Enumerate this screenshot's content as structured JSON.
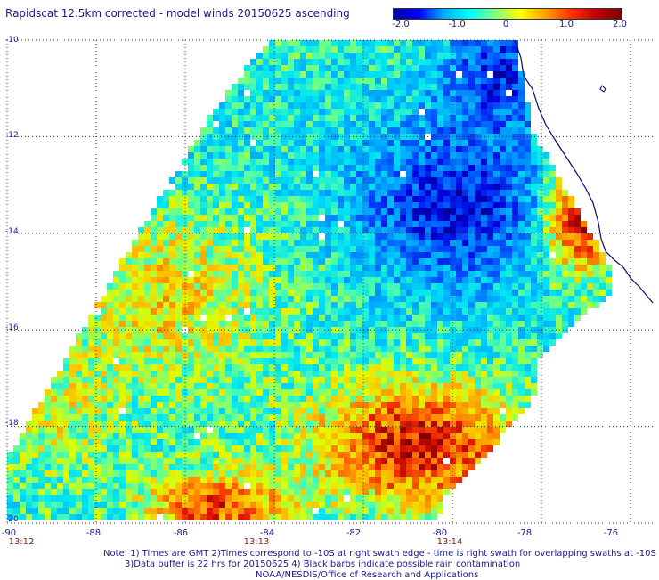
{
  "title": "Rapidscat 12.5km corrected - model winds 20150625 ascending",
  "colorbar": {
    "ticks": [
      "-2.0",
      "-1.0",
      "0",
      "1.0",
      "2.0"
    ],
    "colors": [
      "#0000a0",
      "#0000ff",
      "#00b0ff",
      "#00ffff",
      "#7fff7f",
      "#ffff00",
      "#ffa000",
      "#ff3000",
      "#c00000",
      "#800000"
    ]
  },
  "axes": {
    "lat_labels": [
      "-10",
      "-12",
      "-14",
      "-16",
      "-18",
      "-20"
    ],
    "lon_labels": [
      "-90",
      "-88",
      "-86",
      "-84",
      "-82",
      "-80",
      "-78",
      "-76"
    ],
    "time_labels": [
      "13:12",
      "13:13",
      "13:14"
    ],
    "lon_range": [
      -90,
      -75.5
    ],
    "lat_range": [
      -20,
      -10
    ]
  },
  "notes": [
    "Note: 1) Times are GMT 2)Times correspond to -10S at right swath edge - time is right swath for overlapping swaths at -10S",
    "3)Data buffer is 22 hrs for 20150625 4) Black barbs indicate possible rain contamination",
    "NOAA/NESDIS/Office of Research and Applications"
  ],
  "colors": {
    "grid": "#333333",
    "text": "#1a1a8c",
    "time_text": "#8b1a1a",
    "coast": "#0a0a70"
  }
}
